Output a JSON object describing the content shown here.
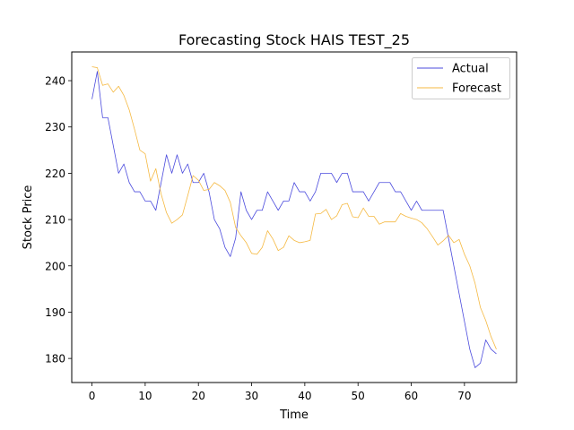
{
  "chart_data": {
    "type": "line",
    "title": "Forecasting Stock HAIS TEST_25",
    "xlabel": "Time",
    "ylabel": "Stock Price",
    "xlim": [
      -3.8,
      79.8
    ],
    "ylim": [
      174.8,
      246.2
    ],
    "xticks": [
      0,
      10,
      20,
      30,
      40,
      50,
      60,
      70
    ],
    "yticks": [
      180,
      190,
      200,
      210,
      220,
      230,
      240
    ],
    "grid": false,
    "legend_position": "top-right",
    "x": [
      0,
      1,
      2,
      3,
      4,
      5,
      6,
      7,
      8,
      9,
      10,
      11,
      12,
      13,
      14,
      15,
      16,
      17,
      18,
      19,
      20,
      21,
      22,
      23,
      24,
      25,
      26,
      27,
      28,
      29,
      30,
      31,
      32,
      33,
      34,
      35,
      36,
      37,
      38,
      39,
      40,
      41,
      42,
      43,
      44,
      45,
      46,
      47,
      48,
      49,
      50,
      51,
      52,
      53,
      54,
      55,
      56,
      57,
      58,
      59,
      60,
      61,
      62,
      63,
      64,
      65,
      66,
      67,
      68,
      69,
      70,
      71,
      72,
      73,
      74,
      75,
      76
    ],
    "series": [
      {
        "name": "Actual",
        "color": "#4b4bdd",
        "values": [
          236,
          242,
          232,
          232,
          226,
          220,
          222,
          218,
          216,
          216,
          214,
          214,
          212,
          218,
          224,
          220,
          224,
          220,
          222,
          218,
          218,
          220,
          216,
          210,
          208,
          204,
          202,
          206,
          216,
          212,
          210,
          212,
          212,
          216,
          214,
          212,
          214,
          214,
          218,
          216,
          216,
          214,
          216,
          220,
          220,
          220,
          218,
          220,
          220,
          216,
          216,
          216,
          214,
          216,
          218,
          218,
          218,
          216,
          216,
          214,
          212,
          214,
          212,
          212,
          212,
          212,
          212,
          206,
          200,
          194,
          188,
          182,
          178,
          179,
          184,
          182,
          181
        ]
      },
      {
        "name": "Forecast",
        "color": "#f5b942",
        "values": [
          243,
          242.8,
          239,
          239.3,
          237.5,
          238.8,
          236.8,
          233.7,
          229.5,
          225,
          224.2,
          218.3,
          221,
          215.5,
          211.5,
          209.2,
          210,
          211,
          215.2,
          219.5,
          218.5,
          216.3,
          216.5,
          218,
          217.3,
          216.3,
          213.7,
          208.3,
          206.5,
          205,
          202.7,
          202.5,
          204,
          207.6,
          205.8,
          203.3,
          204,
          206.5,
          205.5,
          205,
          205.2,
          205.5,
          211.2,
          211.3,
          212.2,
          210,
          210.8,
          213.2,
          213.5,
          210.6,
          210.4,
          212.5,
          210.7,
          210.7,
          209,
          209.5,
          209.5,
          209.5,
          211.3,
          210.7,
          210.3,
          210,
          209.3,
          208,
          206.3,
          204.5,
          205.4,
          206.6,
          205,
          205.7,
          202.5,
          200,
          196.2,
          191,
          188.2,
          184.7,
          182
        ]
      }
    ]
  }
}
